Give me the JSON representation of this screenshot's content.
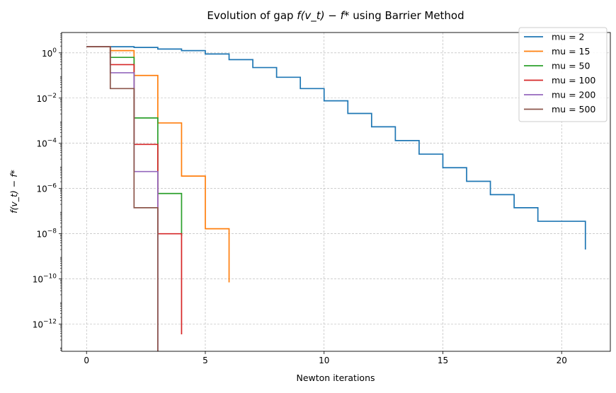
{
  "chart_data": {
    "type": "line",
    "step_style": "post",
    "title": "Evolution of gap f(v_t) − f* using Barrier Method",
    "title_parts": {
      "prefix": "Evolution of gap ",
      "math": "f(v_t) − f*",
      "suffix": " using Barrier Method"
    },
    "xlabel": "Newton iterations",
    "ylabel": "f(v_t) − f*",
    "yscale": "log",
    "xlim": [
      -1.05,
      22.05
    ],
    "ylim_log10": [
      -13.2,
      0.9
    ],
    "xticks": [
      0,
      5,
      10,
      15,
      20
    ],
    "xtick_labels": [
      "0",
      "5",
      "10",
      "15",
      "20"
    ],
    "yticks_log10": [
      -12,
      -10,
      -8,
      -6,
      -4,
      -2,
      0
    ],
    "ytick_labels": [
      "10",
      "10",
      "10",
      "10",
      "10",
      "10",
      "10"
    ],
    "ytick_exponents": [
      "−12",
      "−10",
      "−8",
      "−6",
      "−4",
      "−2",
      "0"
    ],
    "grid": true,
    "legend_position": "top-right",
    "series": [
      {
        "name": "mu = 2",
        "color": "#1f77b4",
        "x": [
          0,
          1,
          2,
          3,
          4,
          5,
          6,
          7,
          8,
          9,
          10,
          11,
          12,
          13,
          14,
          15,
          16,
          17,
          18,
          19,
          20,
          21
        ],
        "log10_y": [
          0.27,
          0.27,
          0.24,
          0.17,
          0.1,
          -0.05,
          -0.3,
          -0.65,
          -1.08,
          -1.58,
          -2.12,
          -2.68,
          -3.27,
          -3.88,
          -4.48,
          -5.08,
          -5.68,
          -6.27,
          -6.85,
          -7.45,
          -7.45,
          -8.7
        ]
      },
      {
        "name": "mu = 15",
        "color": "#ff7f0e",
        "x": [
          0,
          1,
          2,
          3,
          4,
          5,
          6
        ],
        "log10_y": [
          0.27,
          0.1,
          -1.0,
          -3.1,
          -5.45,
          -7.78,
          -10.15
        ]
      },
      {
        "name": "mu = 50",
        "color": "#2ca02c",
        "x": [
          0,
          1,
          2,
          3,
          4
        ],
        "log10_y": [
          0.27,
          -0.2,
          -2.88,
          -6.22,
          -8.1
        ]
      },
      {
        "name": "mu = 100",
        "color": "#d62728",
        "x": [
          0,
          1,
          2,
          3,
          4
        ],
        "log10_y": [
          0.27,
          -0.52,
          -4.05,
          -8.0,
          -12.45
        ]
      },
      {
        "name": "mu = 200",
        "color": "#9467bd",
        "x": [
          0,
          1,
          2,
          3
        ],
        "log10_y": [
          0.27,
          -0.88,
          -5.25,
          -13.2
        ]
      },
      {
        "name": "mu = 500",
        "color": "#8c564b",
        "x": [
          0,
          1,
          2,
          3
        ],
        "log10_y": [
          0.27,
          -1.58,
          -6.85,
          -13.2
        ]
      }
    ]
  }
}
